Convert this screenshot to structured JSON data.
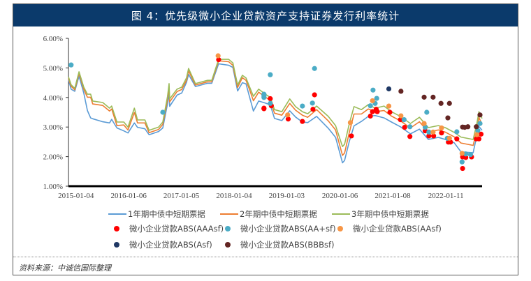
{
  "title": "图 4：优先级微小企业贷款资产支持证券发行利率统计",
  "source": "资料来源：中诚信国际整理",
  "chart_data": {
    "type": "line",
    "title": "图 4：优先级微小企业贷款资产支持证券发行利率统计",
    "xlabel": "",
    "ylabel": "",
    "x_unit": "decimal year",
    "xlim": [
      2015.0,
      2022.85
    ],
    "ylim": [
      1.0,
      6.0
    ],
    "grid": false,
    "legend_position": "bottom",
    "y_ticks": [
      "6.00%",
      "5.00%",
      "4.00%",
      "3.00%",
      "2.00%",
      "1.00%"
    ],
    "y_tick_values": [
      6,
      5,
      4,
      3,
      2,
      1
    ],
    "x_ticks": [
      "2015-01-04",
      "2016-01-06",
      "2017-01-05",
      "2018-01-04",
      "2019-01-03",
      "2020-01-06",
      "2021-01-08",
      "2022-01-11"
    ],
    "x_tick_values": [
      2015.01,
      2016.01,
      2017.01,
      2018.01,
      2019.01,
      2020.02,
      2021.02,
      2022.03
    ],
    "x": [
      2015.0,
      2015.05,
      2015.12,
      2015.2,
      2015.29,
      2015.36,
      2015.42,
      2015.46,
      2015.65,
      2015.78,
      2015.82,
      2015.92,
      2016.05,
      2016.13,
      2016.25,
      2016.31,
      2016.45,
      2016.53,
      2016.71,
      2016.79,
      2016.88,
      2016.91,
      2016.92,
      2017.06,
      2017.15,
      2017.24,
      2017.28,
      2017.41,
      2017.64,
      2017.72,
      2017.85,
      2018.04,
      2018.12,
      2018.21,
      2018.3,
      2018.37,
      2018.44,
      2018.51,
      2018.61,
      2018.74,
      2018.83,
      2018.91,
      2019.05,
      2019.2,
      2019.31,
      2019.44,
      2019.54,
      2019.71,
      2019.93,
      2020.07,
      2020.2,
      2020.24,
      2020.33,
      2020.42,
      2020.56,
      2020.69,
      2020.82,
      2020.99,
      2021.13,
      2021.3,
      2021.49,
      2021.66,
      2021.83,
      2022.02,
      2022.15,
      2022.32,
      2022.45,
      2022.68,
      2022.75,
      2022.79,
      2022.85
    ],
    "series": [
      {
        "name": "1年期中债中短期票据",
        "color": "#5b9bd5",
        "values": [
          4.6,
          4.28,
          4.21,
          4.72,
          4.15,
          3.56,
          3.31,
          3.28,
          3.18,
          3.14,
          3.26,
          2.97,
          2.87,
          2.8,
          3.14,
          2.99,
          2.94,
          2.74,
          2.85,
          2.97,
          3.79,
          4.17,
          3.7,
          4.08,
          4.15,
          4.51,
          4.78,
          4.37,
          4.48,
          4.48,
          5.14,
          5.09,
          5.02,
          4.22,
          4.5,
          4.46,
          4.0,
          3.54,
          3.88,
          3.81,
          3.75,
          3.29,
          3.22,
          3.55,
          3.34,
          3.17,
          3.15,
          3.36,
          2.96,
          2.65,
          1.79,
          1.87,
          2.52,
          3.04,
          3.19,
          3.36,
          3.39,
          3.31,
          3.17,
          3.01,
          2.77,
          2.93,
          2.58,
          2.65,
          2.58,
          2.47,
          2.16,
          2.13,
          2.72,
          3.02,
          2.89
        ]
      },
      {
        "name": "2年期中债中短期票据",
        "color": "#ed7d31",
        "values": [
          4.65,
          4.38,
          4.26,
          4.82,
          4.28,
          4.01,
          4.01,
          3.78,
          3.73,
          3.54,
          3.61,
          3.05,
          3.07,
          2.9,
          3.49,
          3.14,
          3.14,
          2.81,
          2.92,
          3.09,
          3.94,
          4.37,
          3.85,
          4.2,
          4.27,
          4.58,
          4.9,
          4.42,
          4.53,
          4.53,
          5.24,
          5.21,
          5.09,
          4.34,
          4.67,
          4.58,
          4.25,
          3.89,
          4.18,
          4.01,
          3.9,
          3.47,
          3.4,
          3.8,
          3.57,
          3.4,
          3.33,
          3.59,
          3.21,
          2.9,
          2.04,
          2.12,
          2.82,
          3.44,
          3.44,
          3.61,
          3.52,
          3.56,
          3.37,
          3.21,
          2.97,
          3.18,
          2.83,
          2.9,
          2.83,
          2.67,
          2.46,
          2.38,
          2.92,
          3.32,
          3.09
        ]
      },
      {
        "name": "3年期中债中短期票据",
        "color": "#9bbb59",
        "values": [
          4.7,
          4.43,
          4.31,
          4.87,
          4.35,
          4.11,
          4.11,
          3.88,
          3.83,
          3.64,
          3.71,
          3.17,
          3.17,
          3.0,
          3.64,
          3.24,
          3.24,
          2.89,
          3.0,
          3.17,
          4.04,
          4.47,
          3.95,
          4.28,
          4.35,
          4.66,
          4.98,
          4.47,
          4.58,
          4.58,
          5.29,
          5.29,
          5.17,
          4.42,
          4.75,
          4.66,
          4.35,
          4.04,
          4.28,
          4.11,
          4.0,
          3.59,
          3.52,
          3.95,
          3.69,
          3.52,
          3.45,
          3.71,
          3.36,
          3.05,
          2.34,
          2.42,
          3.12,
          3.69,
          3.59,
          3.76,
          3.64,
          3.71,
          3.52,
          3.36,
          3.12,
          3.33,
          2.98,
          3.05,
          2.98,
          2.82,
          2.66,
          2.58,
          3.12,
          3.52,
          3.29
        ]
      }
    ],
    "scatter_series": [
      {
        "name": "微小企业贷款ABS(AAAsf)",
        "color": "#ff0000",
        "points": [
          [
            2017.85,
            5.28
          ],
          [
            2018.71,
            3.62
          ],
          [
            2018.71,
            3.64
          ],
          [
            2018.83,
            3.96
          ],
          [
            2018.85,
            3.72
          ],
          [
            2019.17,
            3.27
          ],
          [
            2019.44,
            3.19
          ],
          [
            2019.64,
            3.6
          ],
          [
            2019.67,
            4.09
          ],
          [
            2020.37,
            2.7
          ],
          [
            2020.77,
            3.52
          ],
          [
            2020.73,
            3.37
          ],
          [
            2020.84,
            3.6
          ],
          [
            2020.86,
            3.52
          ],
          [
            2021.1,
            3.5
          ],
          [
            2021.3,
            3.25
          ],
          [
            2021.38,
            2.99
          ],
          [
            2021.48,
            2.68
          ],
          [
            2021.77,
            2.87
          ],
          [
            2021.84,
            2.7
          ],
          [
            2021.93,
            2.7
          ],
          [
            2022.08,
            2.8
          ],
          [
            2022.21,
            2.49
          ],
          [
            2022.25,
            2.49
          ],
          [
            2022.37,
            2.6
          ],
          [
            2022.48,
            1.6
          ],
          [
            2022.48,
            1.99
          ],
          [
            2022.54,
            1.97
          ],
          [
            2022.65,
            1.99
          ],
          [
            2022.74,
            2.6
          ],
          [
            2022.79,
            2.6
          ],
          [
            2022.83,
            2.76
          ]
        ]
      },
      {
        "name": "微小企业贷款ABS(AA+sf)",
        "color": "#4bacc6",
        "points": [
          [
            2015.05,
            5.1
          ],
          [
            2016.79,
            3.5
          ],
          [
            2018.71,
            4.05
          ],
          [
            2018.71,
            4.11
          ],
          [
            2018.71,
            4.0
          ],
          [
            2018.83,
            3.8
          ],
          [
            2018.83,
            4.77
          ],
          [
            2019.44,
            3.71
          ],
          [
            2019.63,
            3.81
          ],
          [
            2019.67,
            4.98
          ],
          [
            2020.78,
            4.25
          ],
          [
            2020.85,
            3.97
          ],
          [
            2020.73,
            3.72
          ],
          [
            2020.82,
            3.8
          ],
          [
            2021.37,
            3.25
          ],
          [
            2021.48,
            3.01
          ],
          [
            2021.77,
            2.99
          ],
          [
            2021.8,
            3.5
          ],
          [
            2021.84,
            2.83
          ],
          [
            2022.19,
            2.62
          ],
          [
            2022.37,
            2.84
          ],
          [
            2022.47,
            1.82
          ],
          [
            2022.54,
            2.09
          ],
          [
            2022.63,
            2.07
          ],
          [
            2022.77,
            2.88
          ],
          [
            2022.81,
            3.12
          ]
        ]
      },
      {
        "name": "微小企业贷款ABS(AAsf)",
        "color": "#f79646",
        "points": [
          [
            2017.84,
            5.41
          ],
          [
            2019.16,
            3.41
          ],
          [
            2020.35,
            3.15
          ],
          [
            2020.77,
            3.89
          ],
          [
            2021.08,
            3.71
          ],
          [
            2021.31,
            3.38
          ],
          [
            2021.75,
            3.12
          ],
          [
            2021.92,
            2.83
          ],
          [
            2022.08,
            2.97
          ],
          [
            2022.23,
            2.62
          ],
          [
            2022.47,
            2.11
          ],
          [
            2022.75,
            2.74
          ]
        ]
      },
      {
        "name": "微小企业贷款ABS(Asf)",
        "color": "#1f3864",
        "points": [
          [
            2021.08,
            4.29
          ]
        ]
      },
      {
        "name": "微小企业贷款ABS(BBBsf)",
        "color": "#632523",
        "points": [
          [
            2021.31,
            4.21
          ],
          [
            2021.75,
            4.01
          ],
          [
            2021.92,
            4.01
          ],
          [
            2022.07,
            3.8
          ],
          [
            2022.23,
            3.8
          ],
          [
            2022.2,
            3.31
          ],
          [
            2022.48,
            3.0
          ],
          [
            2022.52,
            2.99
          ],
          [
            2022.58,
            3.01
          ],
          [
            2022.74,
            3.01
          ],
          [
            2022.81,
            3.41
          ]
        ]
      }
    ]
  }
}
